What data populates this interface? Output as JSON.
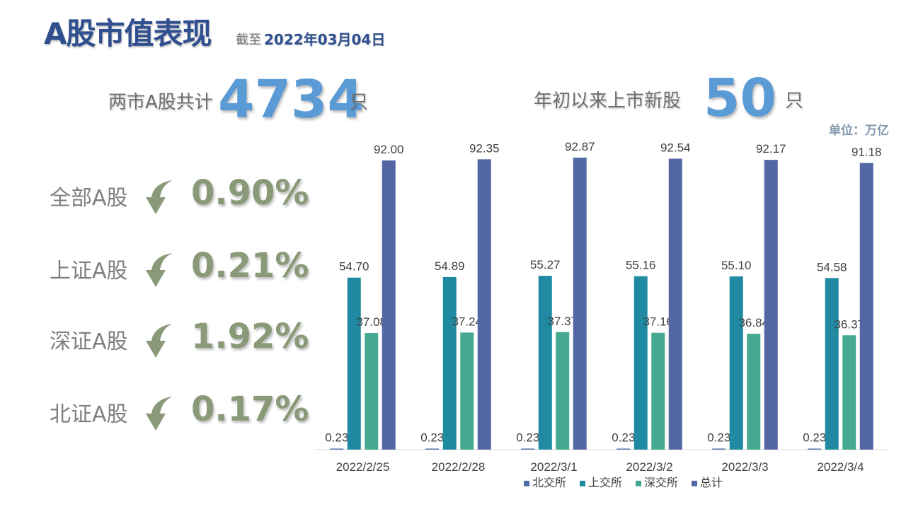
{
  "header": {
    "title": "A股市值表现",
    "date_prefix": "截至",
    "date_value": "2022年03月04日"
  },
  "kpis": [
    {
      "label": "两市A股共计",
      "value": "4734",
      "unit": "只"
    },
    {
      "label": "年初以来上市新股",
      "value": "50",
      "unit": "只"
    }
  ],
  "unit_note": "单位：万亿",
  "changes": [
    {
      "name": "全部A股",
      "value": "0.90%",
      "direction": "down"
    },
    {
      "name": "上证A股",
      "value": "0.21%",
      "direction": "down"
    },
    {
      "name": "深证A股",
      "value": "1.92%",
      "direction": "down"
    },
    {
      "name": "北证A股",
      "value": "0.17%",
      "direction": "down"
    }
  ],
  "colors": {
    "title": "#2f4f8f",
    "kpi_number": "#5b9bd5",
    "change_value": "#8a9a78",
    "arrow_icon": "#8a9a78"
  },
  "icons": {
    "change_arrow": "curved-down-arrow-icon"
  },
  "chart_data": {
    "type": "bar",
    "categories": [
      "2022/2/25",
      "2022/2/28",
      "2022/3/1",
      "2022/3/2",
      "2022/3/3",
      "2022/3/4"
    ],
    "series": [
      {
        "name": "北交所",
        "color": "#4a6fa5",
        "values": [
          0.23,
          0.23,
          0.23,
          0.23,
          0.23,
          0.23
        ]
      },
      {
        "name": "上交所",
        "color": "#1f8aa2",
        "values": [
          54.7,
          54.89,
          55.27,
          55.16,
          55.1,
          54.58
        ]
      },
      {
        "name": "深交所",
        "color": "#45a890",
        "values": [
          37.08,
          37.24,
          37.37,
          37.16,
          36.84,
          36.37
        ]
      },
      {
        "name": "总计",
        "color": "#5367a5",
        "values": [
          92.0,
          92.35,
          92.87,
          92.54,
          92.17,
          91.18
        ]
      }
    ],
    "ylim": [
      0,
      92.87
    ],
    "legend": "bottom",
    "grid": false,
    "data_labels": true
  }
}
